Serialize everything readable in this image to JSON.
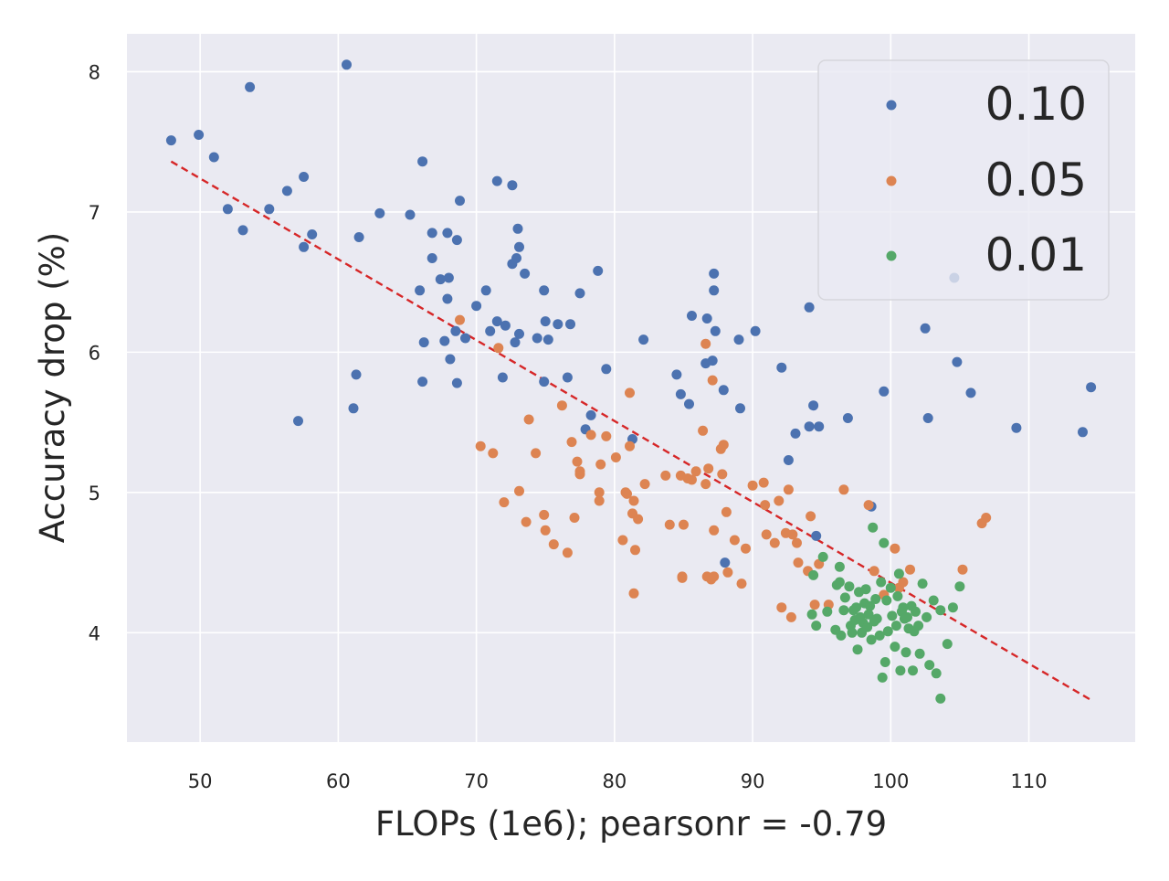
{
  "chart_data": {
    "type": "scatter",
    "title": "",
    "xlabel": "FLOPs (1e6); pearsonr = -0.79",
    "ylabel": "Accuracy drop (%)",
    "xlim": [
      44.7,
      117.7
    ],
    "ylim": [
      3.22,
      8.27
    ],
    "xticks": [
      50,
      60,
      70,
      80,
      90,
      100,
      110
    ],
    "yticks": [
      4,
      5,
      6,
      7,
      8
    ],
    "grid": true,
    "legend_position": "top-right",
    "colors": {
      "background": "#EAEAF2",
      "grid": "#FFFFFF",
      "trendline": "#D62728"
    },
    "trendline": {
      "x": [
        47.9,
        114.5
      ],
      "y": [
        7.36,
        3.52
      ],
      "style": "dashed"
    },
    "series": [
      {
        "name": "0.10",
        "color": "#4C72B0",
        "points": [
          [
            47.9,
            7.51
          ],
          [
            49.9,
            7.55
          ],
          [
            51.0,
            7.39
          ],
          [
            52.0,
            7.02
          ],
          [
            53.1,
            6.87
          ],
          [
            53.6,
            7.89
          ],
          [
            55.0,
            7.02
          ],
          [
            56.3,
            7.15
          ],
          [
            57.1,
            5.51
          ],
          [
            57.5,
            6.75
          ],
          [
            57.5,
            7.25
          ],
          [
            58.1,
            6.84
          ],
          [
            60.6,
            8.05
          ],
          [
            61.1,
            5.6
          ],
          [
            61.3,
            5.84
          ],
          [
            61.5,
            6.82
          ],
          [
            63.0,
            6.99
          ],
          [
            65.2,
            6.98
          ],
          [
            65.9,
            6.44
          ],
          [
            66.1,
            7.36
          ],
          [
            66.1,
            5.79
          ],
          [
            66.2,
            6.07
          ],
          [
            66.8,
            6.67
          ],
          [
            66.8,
            6.85
          ],
          [
            67.4,
            6.52
          ],
          [
            67.7,
            6.08
          ],
          [
            67.9,
            6.85
          ],
          [
            67.9,
            6.38
          ],
          [
            68.0,
            6.53
          ],
          [
            68.1,
            5.95
          ],
          [
            68.5,
            6.15
          ],
          [
            68.6,
            5.78
          ],
          [
            68.6,
            6.8
          ],
          [
            68.8,
            7.08
          ],
          [
            69.2,
            6.1
          ],
          [
            70.0,
            6.33
          ],
          [
            70.7,
            6.44
          ],
          [
            71.0,
            6.15
          ],
          [
            71.5,
            7.22
          ],
          [
            71.5,
            6.22
          ],
          [
            71.9,
            5.82
          ],
          [
            72.1,
            6.19
          ],
          [
            72.6,
            7.19
          ],
          [
            72.6,
            6.63
          ],
          [
            72.8,
            6.07
          ],
          [
            72.9,
            6.67
          ],
          [
            73.0,
            6.88
          ],
          [
            73.1,
            6.13
          ],
          [
            73.1,
            6.75
          ],
          [
            73.5,
            6.56
          ],
          [
            74.4,
            6.1
          ],
          [
            74.9,
            6.44
          ],
          [
            74.9,
            5.79
          ],
          [
            75.0,
            6.22
          ],
          [
            75.2,
            6.09
          ],
          [
            75.9,
            6.2
          ],
          [
            76.6,
            5.82
          ],
          [
            76.8,
            6.2
          ],
          [
            77.5,
            6.42
          ],
          [
            77.9,
            5.45
          ],
          [
            78.3,
            5.55
          ],
          [
            78.8,
            6.58
          ],
          [
            79.4,
            5.88
          ],
          [
            81.3,
            5.38
          ],
          [
            82.1,
            6.09
          ],
          [
            84.5,
            5.84
          ],
          [
            84.8,
            5.7
          ],
          [
            85.4,
            5.63
          ],
          [
            85.6,
            6.26
          ],
          [
            86.6,
            5.92
          ],
          [
            86.7,
            6.24
          ],
          [
            87.1,
            5.94
          ],
          [
            87.2,
            6.44
          ],
          [
            87.2,
            6.56
          ],
          [
            87.3,
            6.15
          ],
          [
            87.9,
            5.73
          ],
          [
            88.0,
            4.5
          ],
          [
            89.0,
            6.09
          ],
          [
            89.1,
            5.6
          ],
          [
            90.2,
            6.15
          ],
          [
            92.1,
            5.89
          ],
          [
            92.6,
            5.23
          ],
          [
            93.1,
            5.42
          ],
          [
            94.1,
            6.32
          ],
          [
            94.1,
            5.47
          ],
          [
            94.4,
            5.62
          ],
          [
            94.8,
            5.47
          ],
          [
            94.6,
            4.69
          ],
          [
            96.9,
            5.53
          ],
          [
            98.6,
            4.9
          ],
          [
            99.5,
            5.72
          ],
          [
            102.5,
            6.17
          ],
          [
            102.7,
            5.53
          ],
          [
            104.6,
            6.53
          ],
          [
            104.8,
            5.93
          ],
          [
            105.8,
            5.71
          ],
          [
            109.1,
            5.46
          ],
          [
            113.9,
            5.43
          ],
          [
            114.5,
            5.75
          ]
        ]
      },
      {
        "name": "0.05",
        "color": "#DD8452",
        "points": [
          [
            68.8,
            6.23
          ],
          [
            70.3,
            5.33
          ],
          [
            71.2,
            5.28
          ],
          [
            71.6,
            6.03
          ],
          [
            72.0,
            4.93
          ],
          [
            73.1,
            5.01
          ],
          [
            73.6,
            4.79
          ],
          [
            73.8,
            5.52
          ],
          [
            74.3,
            5.28
          ],
          [
            74.9,
            4.84
          ],
          [
            75.0,
            4.73
          ],
          [
            75.6,
            4.63
          ],
          [
            76.2,
            5.62
          ],
          [
            76.6,
            4.57
          ],
          [
            76.9,
            5.36
          ],
          [
            77.1,
            4.82
          ],
          [
            77.3,
            5.22
          ],
          [
            77.5,
            5.13
          ],
          [
            77.5,
            5.15
          ],
          [
            78.3,
            5.41
          ],
          [
            78.9,
            5.0
          ],
          [
            78.9,
            4.94
          ],
          [
            79.0,
            5.2
          ],
          [
            79.4,
            5.4
          ],
          [
            80.1,
            5.25
          ],
          [
            80.6,
            4.66
          ],
          [
            80.8,
            5.0
          ],
          [
            80.9,
            4.99
          ],
          [
            81.1,
            5.33
          ],
          [
            81.1,
            5.71
          ],
          [
            81.3,
            4.85
          ],
          [
            81.4,
            4.94
          ],
          [
            81.4,
            4.28
          ],
          [
            81.5,
            4.59
          ],
          [
            81.7,
            4.81
          ],
          [
            82.2,
            5.06
          ],
          [
            83.7,
            5.12
          ],
          [
            84.0,
            4.77
          ],
          [
            84.8,
            5.12
          ],
          [
            84.9,
            4.4
          ],
          [
            84.9,
            4.39
          ],
          [
            85.0,
            4.77
          ],
          [
            85.3,
            5.1
          ],
          [
            85.6,
            5.09
          ],
          [
            85.9,
            5.15
          ],
          [
            86.4,
            5.44
          ],
          [
            86.6,
            5.06
          ],
          [
            86.6,
            6.06
          ],
          [
            86.7,
            4.4
          ],
          [
            86.8,
            5.17
          ],
          [
            87.0,
            4.38
          ],
          [
            87.1,
            5.8
          ],
          [
            87.2,
            4.4
          ],
          [
            87.2,
            4.73
          ],
          [
            87.7,
            5.31
          ],
          [
            87.8,
            5.13
          ],
          [
            87.9,
            5.34
          ],
          [
            88.1,
            4.86
          ],
          [
            88.2,
            4.43
          ],
          [
            88.7,
            4.66
          ],
          [
            89.2,
            4.35
          ],
          [
            89.5,
            4.6
          ],
          [
            90.0,
            5.05
          ],
          [
            90.8,
            5.07
          ],
          [
            90.9,
            4.91
          ],
          [
            91.0,
            4.7
          ],
          [
            91.6,
            4.64
          ],
          [
            91.9,
            4.94
          ],
          [
            92.1,
            4.18
          ],
          [
            92.4,
            4.71
          ],
          [
            92.6,
            5.02
          ],
          [
            92.8,
            4.11
          ],
          [
            92.9,
            4.7
          ],
          [
            93.3,
            4.5
          ],
          [
            93.2,
            4.64
          ],
          [
            94.0,
            4.44
          ],
          [
            94.2,
            4.83
          ],
          [
            94.5,
            4.2
          ],
          [
            94.8,
            4.49
          ],
          [
            95.5,
            4.2
          ],
          [
            96.6,
            5.02
          ],
          [
            98.4,
            4.91
          ],
          [
            98.8,
            4.44
          ],
          [
            99.5,
            4.27
          ],
          [
            100.3,
            4.6
          ],
          [
            100.6,
            4.32
          ],
          [
            100.9,
            4.36
          ],
          [
            101.4,
            4.45
          ],
          [
            105.2,
            4.45
          ],
          [
            106.6,
            4.78
          ],
          [
            106.9,
            4.82
          ]
        ]
      },
      {
        "name": "0.01",
        "color": "#55A868",
        "points": [
          [
            94.3,
            4.13
          ],
          [
            94.4,
            4.41
          ],
          [
            94.6,
            4.05
          ],
          [
            95.1,
            4.54
          ],
          [
            95.4,
            4.15
          ],
          [
            96.0,
            4.02
          ],
          [
            96.1,
            4.34
          ],
          [
            96.3,
            4.36
          ],
          [
            96.3,
            4.47
          ],
          [
            96.4,
            3.98
          ],
          [
            96.6,
            4.16
          ],
          [
            96.7,
            4.25
          ],
          [
            97.0,
            4.33
          ],
          [
            97.1,
            4.05
          ],
          [
            97.2,
            4.0
          ],
          [
            97.3,
            4.16
          ],
          [
            97.4,
            4.09
          ],
          [
            97.5,
            4.18
          ],
          [
            97.6,
            3.88
          ],
          [
            97.7,
            4.29
          ],
          [
            97.8,
            4.11
          ],
          [
            97.9,
            4.0
          ],
          [
            98.0,
            4.07
          ],
          [
            98.1,
            4.21
          ],
          [
            98.2,
            4.31
          ],
          [
            98.3,
            4.04
          ],
          [
            98.4,
            4.13
          ],
          [
            98.5,
            4.19
          ],
          [
            98.6,
            3.95
          ],
          [
            98.7,
            4.75
          ],
          [
            98.8,
            4.08
          ],
          [
            98.9,
            4.24
          ],
          [
            99.0,
            4.1
          ],
          [
            99.2,
            3.98
          ],
          [
            99.3,
            4.36
          ],
          [
            99.4,
            3.68
          ],
          [
            99.5,
            4.64
          ],
          [
            99.6,
            3.79
          ],
          [
            99.7,
            4.23
          ],
          [
            99.8,
            4.01
          ],
          [
            100.0,
            4.32
          ],
          [
            100.1,
            4.12
          ],
          [
            100.3,
            3.9
          ],
          [
            100.4,
            4.05
          ],
          [
            100.5,
            4.26
          ],
          [
            100.6,
            4.42
          ],
          [
            100.7,
            3.73
          ],
          [
            100.8,
            4.15
          ],
          [
            100.9,
            4.18
          ],
          [
            101.0,
            4.1
          ],
          [
            101.1,
            3.86
          ],
          [
            101.2,
            4.11
          ],
          [
            101.3,
            4.03
          ],
          [
            101.5,
            4.19
          ],
          [
            101.6,
            3.73
          ],
          [
            101.7,
            4.01
          ],
          [
            101.8,
            4.15
          ],
          [
            102.0,
            4.05
          ],
          [
            102.1,
            3.85
          ],
          [
            102.3,
            4.35
          ],
          [
            102.6,
            4.11
          ],
          [
            102.8,
            3.77
          ],
          [
            103.1,
            4.23
          ],
          [
            103.3,
            3.71
          ],
          [
            103.6,
            3.53
          ],
          [
            103.6,
            4.16
          ],
          [
            104.1,
            3.92
          ],
          [
            104.5,
            4.18
          ],
          [
            105.0,
            4.33
          ]
        ]
      }
    ]
  }
}
